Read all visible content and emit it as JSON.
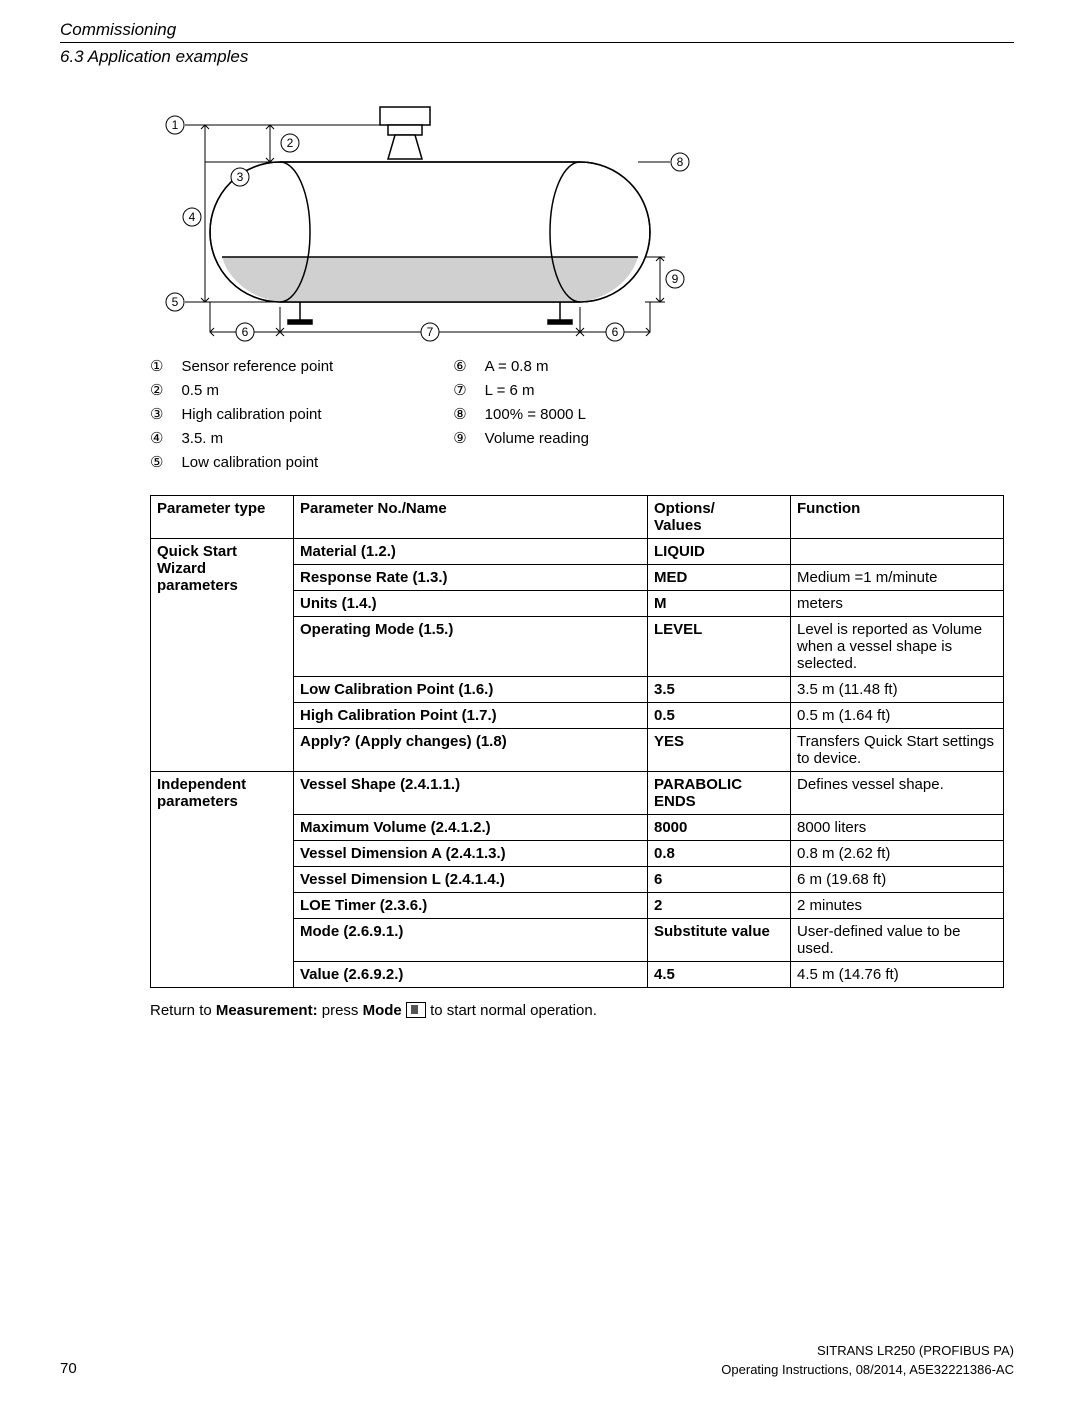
{
  "header": {
    "title": "Commissioning",
    "subtitle": "6.3 Application examples"
  },
  "legend": {
    "left": [
      {
        "n": "①",
        "t": "Sensor reference point"
      },
      {
        "n": "②",
        "t": "0.5 m"
      },
      {
        "n": "③",
        "t": "High calibration point"
      },
      {
        "n": "④",
        "t": "3.5. m"
      },
      {
        "n": "⑤",
        "t": "Low calibration point"
      }
    ],
    "right": [
      {
        "n": "⑥",
        "t": "A = 0.8 m"
      },
      {
        "n": "⑦",
        "t": "L = 6 m"
      },
      {
        "n": "⑧",
        "t": "100% = 8000 L"
      },
      {
        "n": "⑨",
        "t": "Volume reading"
      }
    ]
  },
  "table": {
    "headers": [
      "Parameter type",
      "Parameter No./Name",
      "Options/\nValues",
      "Function"
    ],
    "groups": [
      {
        "type": "Quick Start Wizard parameters",
        "rows": [
          {
            "name": "Material (1.2.)",
            "opt": "LIQUID",
            "func": ""
          },
          {
            "name": "Response Rate (1.3.)",
            "opt": "MED",
            "func": "Medium =1 m/minute"
          },
          {
            "name": "Units (1.4.)",
            "opt": "M",
            "func": "meters"
          },
          {
            "name": "Operating Mode (1.5.)",
            "opt": "LEVEL",
            "func": "Level is reported as Volume when a vessel shape is selected."
          },
          {
            "name": "Low Calibration Point (1.6.)",
            "opt": "3.5",
            "func": "3.5 m (11.48 ft)"
          },
          {
            "name": "High Calibration Point (1.7.)",
            "opt": "0.5",
            "func": "0.5 m (1.64 ft)"
          },
          {
            "name": "Apply? (Apply changes) (1.8)",
            "opt": "YES",
            "func": "Transfers Quick Start settings to device."
          }
        ]
      },
      {
        "type": "Independent parameters",
        "rows": [
          {
            "name": "Vessel Shape (2.4.1.1.)",
            "opt": "PARABOLIC ENDS",
            "func": "Defines vessel shape."
          },
          {
            "name": "Maximum Volume (2.4.1.2.)",
            "opt": "8000",
            "func": "8000 liters"
          },
          {
            "name": "Vessel Dimension A (2.4.1.3.)",
            "opt": "0.8",
            "func": "0.8 m (2.62 ft)"
          },
          {
            "name": "Vessel Dimension L (2.4.1.4.)",
            "opt": "6",
            "func": "6 m (19.68 ft)"
          },
          {
            "name": "LOE Timer (2.3.6.)",
            "opt": "2",
            "func": "2 minutes"
          },
          {
            "name": "Mode (2.6.9.1.)",
            "opt": "Substitute value",
            "func": "User-defined value to be used."
          },
          {
            "name": "Value (2.6.9.2.)",
            "opt": "4.5",
            "func": "4.5 m (14.76 ft)"
          }
        ]
      }
    ]
  },
  "return_text": {
    "prefix": "Return to ",
    "measurement": "Measurement:",
    "mid": " press ",
    "mode": "Mode",
    "suffix": " to start normal operation."
  },
  "footer": {
    "product": "SITRANS LR250 (PROFIBUS PA)",
    "doc": "Operating Instructions, 08/2014, A5E32221386-AC",
    "page": "70"
  },
  "diagram_style": {
    "stroke": "#000000",
    "stroke_width": 1.5,
    "fill_liquid": "#d0d0d0",
    "font_size": 12,
    "circle_r": 9
  }
}
